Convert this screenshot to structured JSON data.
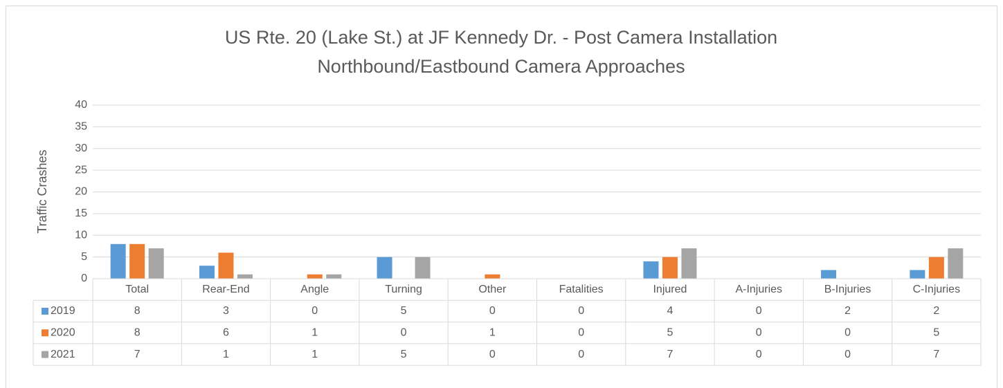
{
  "chart_data": {
    "type": "bar",
    "title": "US Rte. 20 (Lake St.) at JF Kennedy Dr. - Post Camera Installation",
    "subtitle": "Northbound/Eastbound Camera Approaches",
    "y_label": "Traffic Crashes",
    "categories": [
      "Total",
      "Rear-End",
      "Angle",
      "Turning",
      "Other",
      "Fatalities",
      "Injured",
      "A-Injuries",
      "B-Injuries",
      "C-Injuries"
    ],
    "series": [
      {
        "name": "2019",
        "color": "#5b9bd5",
        "values": [
          8,
          3,
          0,
          5,
          0,
          0,
          4,
          0,
          2,
          2
        ]
      },
      {
        "name": "2020",
        "color": "#ed7d31",
        "values": [
          8,
          6,
          1,
          0,
          1,
          0,
          5,
          0,
          0,
          5
        ]
      },
      {
        "name": "2021",
        "color": "#a5a5a5",
        "values": [
          7,
          1,
          1,
          5,
          0,
          0,
          7,
          0,
          0,
          7
        ]
      }
    ],
    "ylim": [
      0,
      40
    ],
    "yticks": [
      0,
      5,
      10,
      15,
      20,
      25,
      30,
      35,
      40
    ],
    "grid": true,
    "data_table": true
  }
}
